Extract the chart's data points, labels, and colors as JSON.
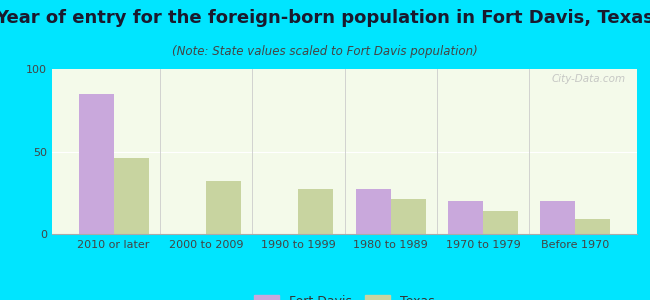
{
  "title": "Year of entry for the foreign-born population in Fort Davis, Texas",
  "subtitle": "(Note: State values scaled to Fort Davis population)",
  "categories": [
    "2010 or later",
    "2000 to 2009",
    "1990 to 1999",
    "1980 to 1989",
    "1970 to 1979",
    "Before 1970"
  ],
  "fort_davis_values": [
    85,
    0,
    0,
    27,
    20,
    20
  ],
  "texas_values": [
    46,
    32,
    27,
    21,
    14,
    9
  ],
  "fort_davis_color": "#c9a8dc",
  "texas_color": "#c8d4a0",
  "background_outer": "#00e5ff",
  "background_inner": "#f4faea",
  "ylim": [
    0,
    100
  ],
  "yticks": [
    0,
    50,
    100
  ],
  "bar_width": 0.38,
  "watermark": "City-Data.com",
  "legend_labels": [
    "Fort Davis",
    "Texas"
  ],
  "title_fontsize": 13,
  "subtitle_fontsize": 8.5,
  "tick_fontsize": 8,
  "legend_fontsize": 9
}
